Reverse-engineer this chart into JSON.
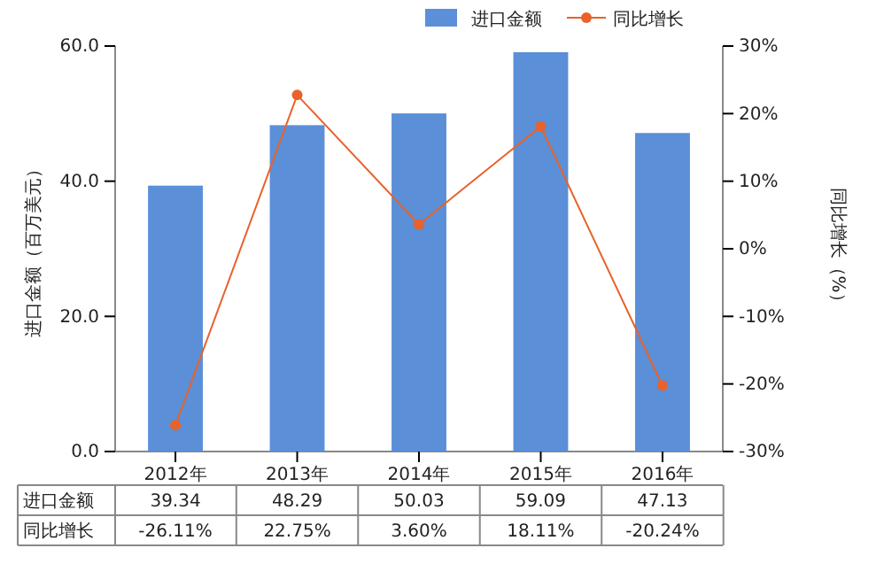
{
  "chart_data": {
    "type": "bar",
    "categories": [
      "2012年",
      "2013年",
      "2014年",
      "2015年",
      "2016年"
    ],
    "ylabel": "进口金额（百万美元）",
    "y2label": "同比增长（%）",
    "ylim": [
      0,
      60
    ],
    "yticks": [
      {
        "value": 0,
        "label": "0.0"
      },
      {
        "value": 20,
        "label": "20.0"
      },
      {
        "value": 40,
        "label": "40.0"
      },
      {
        "value": 60,
        "label": "60.0"
      }
    ],
    "y2lim": [
      -30,
      30
    ],
    "y2ticks": [
      {
        "value": -30,
        "label": "-30%"
      },
      {
        "value": -20,
        "label": "-20%"
      },
      {
        "value": -10,
        "label": "-10%"
      },
      {
        "value": 0,
        "label": "0%"
      },
      {
        "value": 10,
        "label": "10%"
      },
      {
        "value": 20,
        "label": "20%"
      },
      {
        "value": 30,
        "label": "30%"
      }
    ],
    "series": [
      {
        "name": "进口金额",
        "color": "#5b8fd8",
        "values": [
          39.34,
          48.29,
          50.03,
          59.09,
          47.13
        ],
        "value_labels": [
          "39.34",
          "48.29",
          "50.03",
          "59.09",
          "47.13"
        ]
      },
      {
        "name": "同比增长",
        "type": "line",
        "axis": "y2",
        "color": "#e8622a",
        "values": [
          -26.11,
          22.75,
          3.6,
          18.11,
          -20.24
        ],
        "value_labels": [
          "-26.11%",
          "22.75%",
          "3.60%",
          "18.11%",
          "-20.24%"
        ]
      }
    ],
    "legend": "top right",
    "marker": "circle",
    "line_style": "solid",
    "grid": false
  }
}
